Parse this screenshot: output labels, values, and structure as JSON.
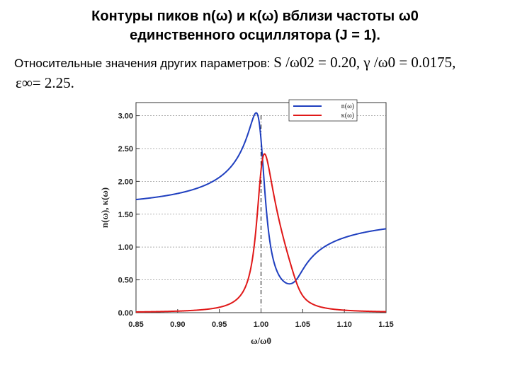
{
  "slide": {
    "title_line1": "Контуры пиков n(ω) и κ(ω) вблизи частоты ω0",
    "title_line2": "единственного осциллятора (J = 1).",
    "params_prefix": "Относительные значения других параметров:",
    "params_formula": "S /ω02 = 0.20, γ /ω0 = 0.0175,",
    "params_line2": "ε∞= 2.25."
  },
  "colors": {
    "n": "#1f3fbf",
    "kappa": "#e01818",
    "axis": "#333333",
    "grid": "#9a9a9a"
  },
  "chart_data": {
    "type": "line",
    "title": "",
    "xlabel": "ω/ω0",
    "ylabel": "n(ω), κ(ω)",
    "xlim": [
      0.85,
      1.15
    ],
    "ylim": [
      0.0,
      3.2
    ],
    "xticks": [
      "0.85",
      "0.90",
      "0.95",
      "1.00",
      "1.05",
      "1.10",
      "1.15"
    ],
    "yticks": [
      "0.00",
      "0.50",
      "1.00",
      "1.50",
      "2.00",
      "2.50",
      "3.00"
    ],
    "grid": "horizontal dashed",
    "vline_x": 1.0,
    "legend": {
      "position": "top-right",
      "entries": [
        "n(ω)",
        "κ(ω)"
      ]
    },
    "model": {
      "S_over_w0sq": 0.2,
      "gamma_over_w0": 0.0175,
      "eps_inf": 2.25
    }
  }
}
